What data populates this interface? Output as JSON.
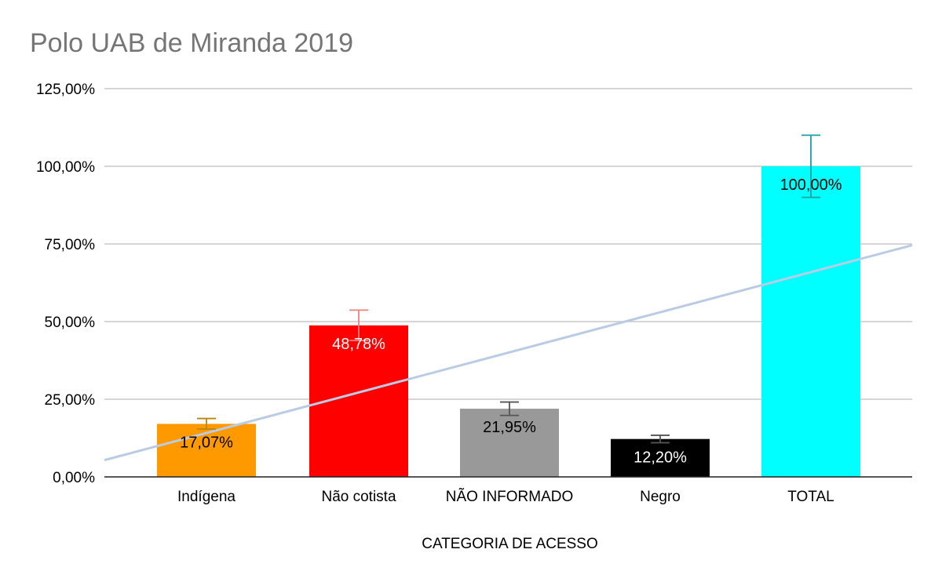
{
  "chart_data": {
    "type": "bar",
    "title": "Polo UAB de Miranda 2019",
    "xlabel": "CATEGORIA DE ACESSO",
    "ylabel": "",
    "ylim": [
      0,
      125
    ],
    "yticks": [
      0,
      25,
      50,
      75,
      100,
      125
    ],
    "ytick_labels": [
      "0,00%",
      "25,00%",
      "50,00%",
      "75,00%",
      "100,00%",
      "125,00%"
    ],
    "grid": true,
    "legend": "none",
    "categories": [
      "Indígena",
      "Não cotista",
      "NÃO INFORMADO",
      "Negro",
      "TOTAL"
    ],
    "values": [
      17.07,
      48.78,
      21.95,
      12.2,
      100
    ],
    "value_labels": [
      "17,07%",
      "48,78%",
      "21,95%",
      "12,20%",
      "100,00%"
    ],
    "colors": [
      "#FF9900",
      "#FF0000",
      "#999999",
      "#000000",
      "#00FFFF"
    ],
    "error_bar_colors": [
      "#B8860B",
      "#F08080",
      "#555555",
      "#555555",
      "#1AA0A0"
    ],
    "label_colors": [
      "#000000",
      "#FFFFFF",
      "#000000",
      "#FFFFFF",
      "#000000"
    ],
    "error_bars": [
      {
        "low": 15.4,
        "high": 18.8
      },
      {
        "low": 43.9,
        "high": 53.7
      },
      {
        "low": 19.8,
        "high": 24.1
      },
      {
        "low": 11.0,
        "high": 13.4
      },
      {
        "low": 90,
        "high": 110
      }
    ],
    "trendline": {
      "type": "linear",
      "color": "#B9CCE4",
      "start_value": 5.4,
      "end_value": 74.6
    }
  }
}
